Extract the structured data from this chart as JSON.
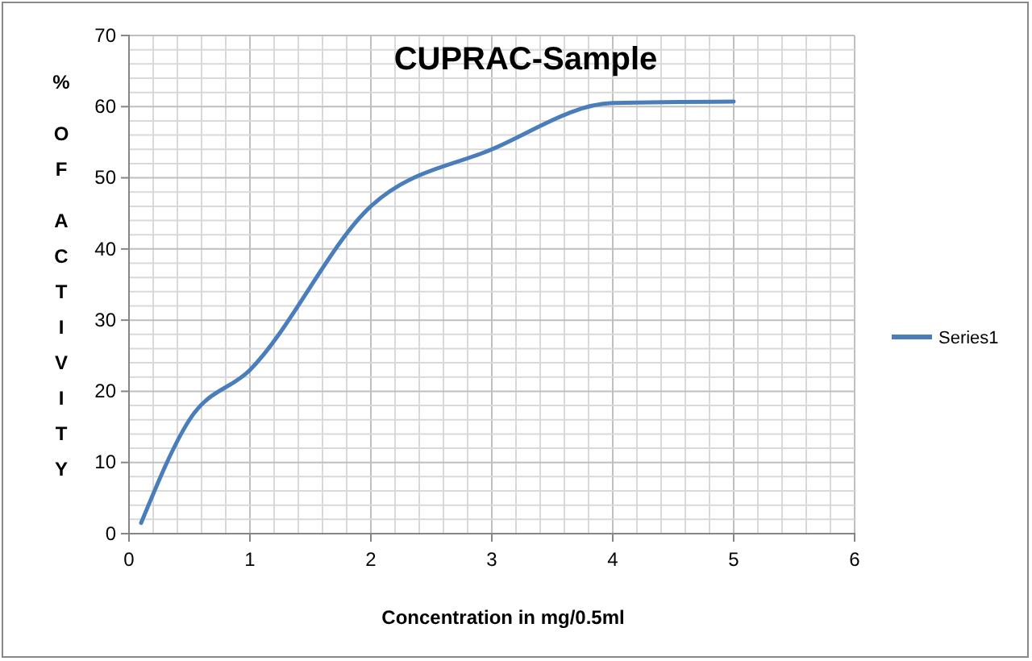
{
  "chart_data": {
    "type": "line",
    "title": "CUPRAC-Sample",
    "xlabel": "Concentration in mg/0.5ml",
    "ylabel": "% OF ACTIVITY",
    "x": [
      0.1,
      0.5,
      1,
      2,
      3,
      4,
      5
    ],
    "series": [
      {
        "name": "Series1",
        "color": "#4a7ebb",
        "values": [
          1.5,
          16,
          23,
          46,
          54,
          60.5,
          60.7
        ]
      }
    ],
    "xlim": [
      0,
      6
    ],
    "xticks": [
      0,
      1,
      2,
      3,
      4,
      5,
      6
    ],
    "ylim": [
      0,
      70
    ],
    "yticks": [
      0,
      10,
      20,
      30,
      40,
      50,
      60,
      70
    ],
    "grid": true,
    "legend": "right",
    "marker": "none",
    "line_style": "solid"
  }
}
